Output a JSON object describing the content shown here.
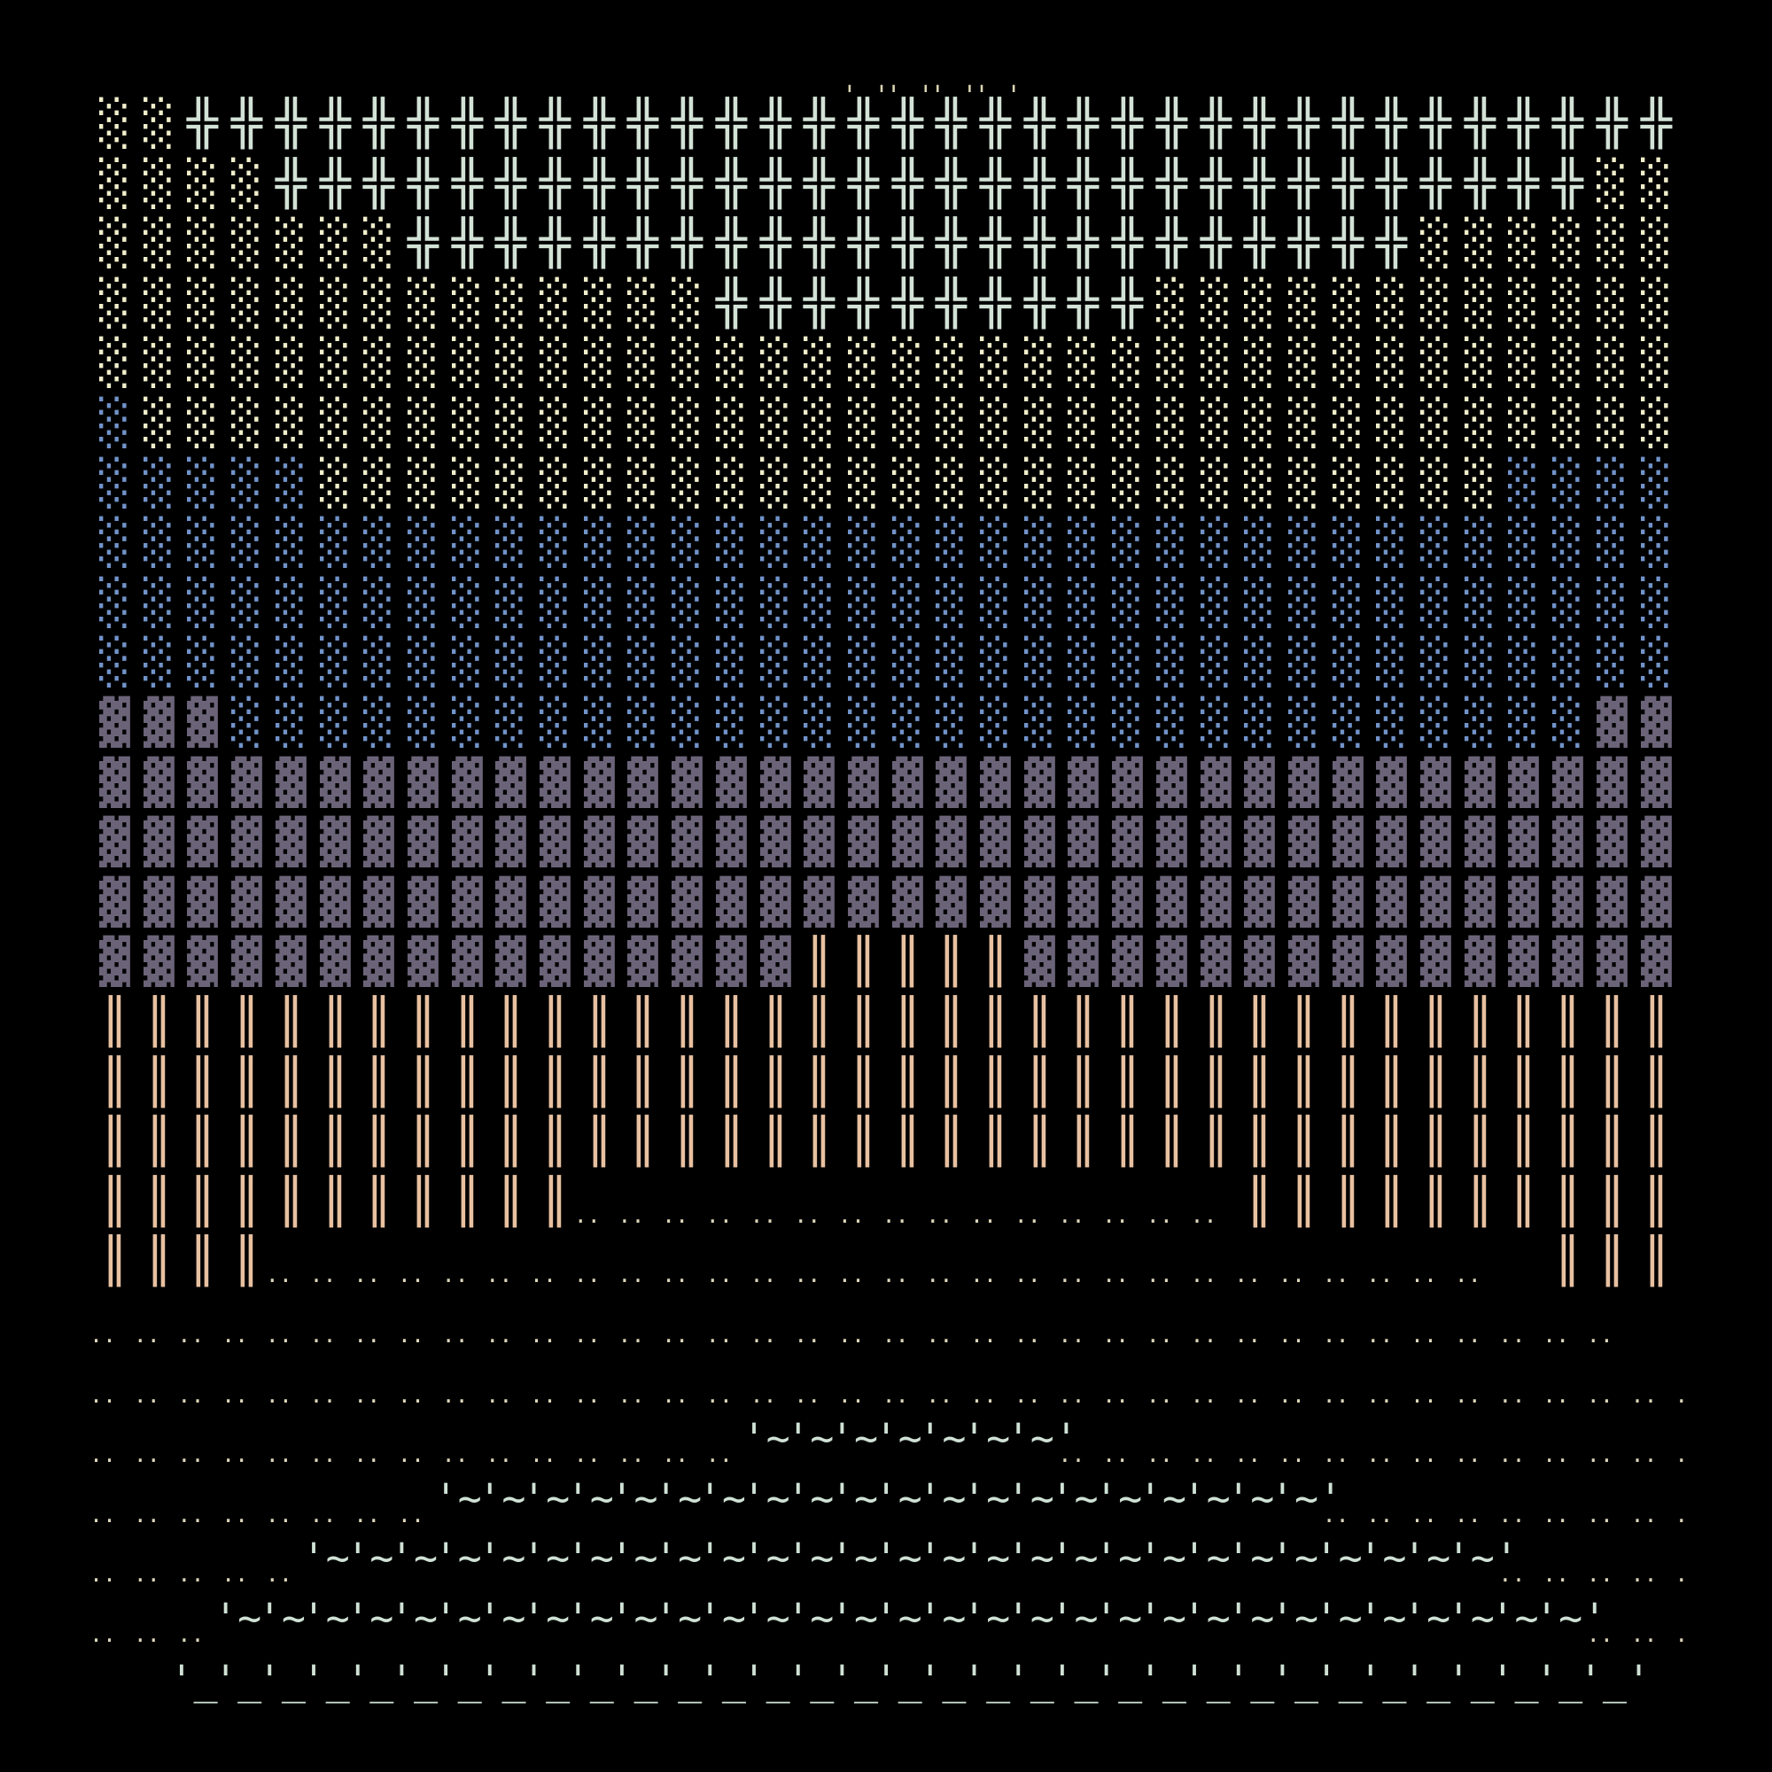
{
  "legend": {
    "L": "░",
    "B": "░",
    "P": "▓",
    "#": "╬",
    "|": "║",
    ":": "..",
    "~": "'~",
    "_": "'_",
    "t": "' '"
  },
  "colors": {
    "background": "#000000",
    "light_shade": "#f1efcb",
    "blue_shade": "#7193c9",
    "dark_shade": "#6b6479",
    "cross": "#d3e2d6",
    "double_bar": "#e8c1a1",
    "dots": "#ddd6bb",
    "wave": "#cfe1d5",
    "tick": "#d9d3b5"
  },
  "tick_row": "                 tttt                ",
  "art_rows": [
    "LL##################################L",
    "LLLL##############################LLL",
    "LLLLLLL#######################LLLLLLL",
    "LLLLLLLLLLLLLL##########LLLLLLLLLLLLL",
    "LLLLLLLLLLLLLLLLLLLLLLLLLLLLLLLLLLLLL",
    "BLLLLLLLLLLLLLLLLLLLLLLLLLLLLLLLLLLLL",
    "BBBBBLLLLLLLLLLLLLLLLLLLLLLLLLLLBBBBB",
    "BBBBBBBBBBBBBBBBBBBBBBBBBBBBBBBBBBBBB",
    "BBBBBBBBBBBBBBBBBBBBBBBBBBBBBBBBBBBBB",
    "BBBBBBBBBBBBBBBBBBBBBBBBBBBBBBBBBBBBB",
    "PPPBBBBBBBBBBBBBBBBBBBBBBBBBBBBBBBPPP",
    "PPPPPPPPPPPPPPPPPPPPPPPPPPPPPPPPPPPPP",
    "PPPPPPPPPPPPPPPPPPPPPPPPPPPPPPPPPPPPP",
    "PPPPPPPPPPPPPPPPPPPPPPPPPPPPPPPPPPPPP",
    "PPPPPPPPPPPPPPPP|||||PPPPPPPPPPPPPPPP",
    "|||||||||||||||||||||||||||||||||||| ",
    "|||||||||||||||||||||||||||||||||||| ",
    "|||||||||||||||||||||||||||||||||||| ",
    "|||||||||||:::::::::::::::|||||||||| ",
    "||||:::::::::::::::::::::::::::: ||| ",
    "::::::::::::::::::::::::::::::::::: ",
    ":::::::::::::::::::::::::::::::::::::",
    ":::::::::::::::~~~~~~~:::::::::::::::",
    "::::::::~~~~~~~~~~~~~~~~~~~~:::::::::",
    ":::::~~~~~~~~~~~~~~~~~~~~~~~~~~~:::::",
    ":::~~~~~~~~~~~~~~~~~~~~~~~~~~~~~~~:::",
    "  _________________________________  "
  ]
}
